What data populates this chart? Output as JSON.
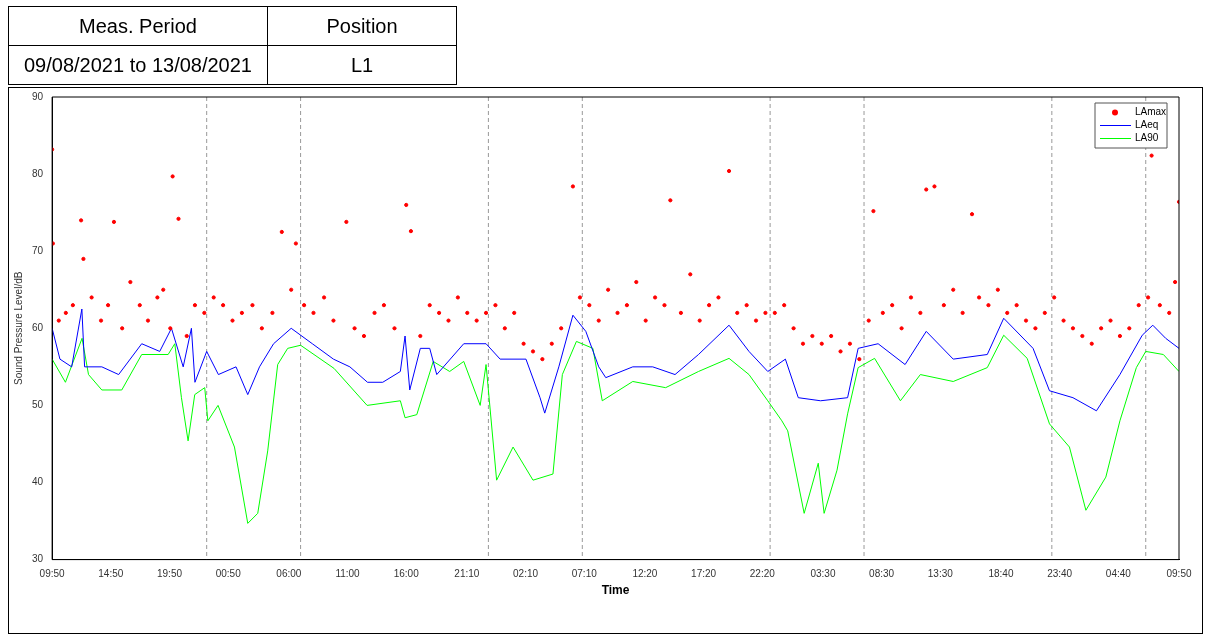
{
  "chart_data": {
    "type": "line",
    "xlabel": "Time",
    "ylabel": "Sound Pressure Level/dB",
    "annotations": [
      "Meas. Period",
      "Position",
      "09/08/2021 to 13/08/2021",
      "L1"
    ],
    "xlim": [
      "2021-08-09T09:50",
      "2021-08-13T09:50"
    ],
    "ylim": [
      30,
      90
    ],
    "yticks": [
      30,
      40,
      50,
      60,
      70,
      80,
      90
    ],
    "xticks": [
      {
        "value": "2021-08-09T09:50",
        "label": "09:50"
      },
      {
        "value": "2021-08-09T14:50",
        "label": "14:50"
      },
      {
        "value": "2021-08-09T19:50",
        "label": "19:50"
      },
      {
        "value": "2021-08-10T00:50",
        "label": "00:50"
      },
      {
        "value": "2021-08-10T06:00",
        "label": "06:00"
      },
      {
        "value": "2021-08-10T11:00",
        "label": "11:00"
      },
      {
        "value": "2021-08-10T16:00",
        "label": "16:00"
      },
      {
        "value": "2021-08-10T21:10",
        "label": "21:10"
      },
      {
        "value": "2021-08-11T02:10",
        "label": "02:10"
      },
      {
        "value": "2021-08-11T07:10",
        "label": "07:10"
      },
      {
        "value": "2021-08-11T12:20",
        "label": "12:20"
      },
      {
        "value": "2021-08-11T17:20",
        "label": "17:20"
      },
      {
        "value": "2021-08-11T22:20",
        "label": "22:20"
      },
      {
        "value": "2021-08-12T03:30",
        "label": "03:30"
      },
      {
        "value": "2021-08-12T08:30",
        "label": "08:30"
      },
      {
        "value": "2021-08-12T13:30",
        "label": "13:30"
      },
      {
        "value": "2021-08-12T18:40",
        "label": "18:40"
      },
      {
        "value": "2021-08-12T23:40",
        "label": "23:40"
      },
      {
        "value": "2021-08-13T04:40",
        "label": "04:40"
      },
      {
        "value": "2021-08-13T09:50",
        "label": "09:50"
      }
    ],
    "ref_lines": [
      {
        "axis": "x",
        "value": "2021-08-09T23:00",
        "color": "#999999",
        "line_style": "dashed"
      },
      {
        "axis": "x",
        "value": "2021-08-10T07:00",
        "color": "#999999",
        "line_style": "dashed"
      },
      {
        "axis": "x",
        "value": "2021-08-10T23:00",
        "color": "#999999",
        "line_style": "dashed"
      },
      {
        "axis": "x",
        "value": "2021-08-11T07:00",
        "color": "#999999",
        "line_style": "dashed"
      },
      {
        "axis": "x",
        "value": "2021-08-11T23:00",
        "color": "#999999",
        "line_style": "dashed"
      },
      {
        "axis": "x",
        "value": "2021-08-12T07:00",
        "color": "#999999",
        "line_style": "dashed"
      },
      {
        "axis": "x",
        "value": "2021-08-12T23:00",
        "color": "#999999",
        "line_style": "dashed"
      },
      {
        "axis": "x",
        "value": "2021-08-13T07:00",
        "color": "#999999",
        "line_style": "dashed"
      }
    ],
    "legend": "top right",
    "series": [
      {
        "name": "LAmax",
        "type": "scatter",
        "marker": "circle",
        "color": "#ff0000",
        "x": [
          "2021-08-09T09:50",
          "2021-08-09T09:54",
          "2021-08-09T10:24",
          "2021-08-09T11:00",
          "2021-08-09T11:36",
          "2021-08-09T12:18",
          "2021-08-09T12:30",
          "2021-08-09T13:12",
          "2021-08-09T14:00",
          "2021-08-09T14:36",
          "2021-08-09T15:06",
          "2021-08-09T15:48",
          "2021-08-09T16:30",
          "2021-08-09T17:18",
          "2021-08-09T18:00",
          "2021-08-09T18:48",
          "2021-08-09T19:18",
          "2021-08-09T19:54",
          "2021-08-09T20:06",
          "2021-08-09T20:36",
          "2021-08-09T21:18",
          "2021-08-09T22:00",
          "2021-08-09T22:48",
          "2021-08-09T23:36",
          "2021-08-10T00:24",
          "2021-08-10T01:12",
          "2021-08-10T02:00",
          "2021-08-10T02:54",
          "2021-08-10T03:42",
          "2021-08-10T04:36",
          "2021-08-10T05:24",
          "2021-08-10T06:12",
          "2021-08-10T06:36",
          "2021-08-10T07:18",
          "2021-08-10T08:06",
          "2021-08-10T09:00",
          "2021-08-10T09:48",
          "2021-08-10T10:54",
          "2021-08-10T11:36",
          "2021-08-10T12:24",
          "2021-08-10T13:18",
          "2021-08-10T14:06",
          "2021-08-10T15:00",
          "2021-08-10T16:00",
          "2021-08-10T16:24",
          "2021-08-10T17:12",
          "2021-08-10T18:00",
          "2021-08-10T18:48",
          "2021-08-10T19:36",
          "2021-08-10T20:24",
          "2021-08-10T21:12",
          "2021-08-10T22:00",
          "2021-08-10T22:48",
          "2021-08-10T23:36",
          "2021-08-11T00:24",
          "2021-08-11T01:12",
          "2021-08-11T02:00",
          "2021-08-11T02:48",
          "2021-08-11T03:36",
          "2021-08-11T04:24",
          "2021-08-11T05:12",
          "2021-08-11T06:12",
          "2021-08-11T06:48",
          "2021-08-11T07:36",
          "2021-08-11T08:24",
          "2021-08-11T09:12",
          "2021-08-11T10:00",
          "2021-08-11T10:48",
          "2021-08-11T11:36",
          "2021-08-11T12:24",
          "2021-08-11T13:12",
          "2021-08-11T14:00",
          "2021-08-11T14:30",
          "2021-08-11T15:24",
          "2021-08-11T16:12",
          "2021-08-11T17:00",
          "2021-08-11T17:48",
          "2021-08-11T18:36",
          "2021-08-11T19:30",
          "2021-08-11T20:12",
          "2021-08-11T21:00",
          "2021-08-11T21:48",
          "2021-08-11T22:36",
          "2021-08-11T23:24",
          "2021-08-12T00:12",
          "2021-08-12T01:00",
          "2021-08-12T01:48",
          "2021-08-12T02:36",
          "2021-08-12T03:24",
          "2021-08-12T04:12",
          "2021-08-12T05:00",
          "2021-08-12T05:48",
          "2021-08-12T06:36",
          "2021-08-12T07:24",
          "2021-08-12T07:48",
          "2021-08-12T08:36",
          "2021-08-12T09:24",
          "2021-08-12T10:12",
          "2021-08-12T11:00",
          "2021-08-12T11:48",
          "2021-08-12T12:18",
          "2021-08-12T13:00",
          "2021-08-12T13:48",
          "2021-08-12T14:36",
          "2021-08-12T15:24",
          "2021-08-12T16:12",
          "2021-08-12T16:48",
          "2021-08-12T17:36",
          "2021-08-12T18:24",
          "2021-08-12T19:12",
          "2021-08-12T20:00",
          "2021-08-12T20:48",
          "2021-08-12T21:36",
          "2021-08-12T22:24",
          "2021-08-12T23:12",
          "2021-08-13T00:00",
          "2021-08-13T00:48",
          "2021-08-13T01:36",
          "2021-08-13T02:24",
          "2021-08-13T03:12",
          "2021-08-13T04:00",
          "2021-08-13T04:48",
          "2021-08-13T05:36",
          "2021-08-13T06:24",
          "2021-08-13T07:12",
          "2021-08-13T07:30",
          "2021-08-13T08:12",
          "2021-08-13T09:00",
          "2021-08-13T09:30",
          "2021-08-13T09:50"
        ],
        "values": [
          83.2,
          71,
          61,
          62,
          63,
          74,
          69,
          64,
          61,
          63,
          73.8,
          60,
          66,
          63,
          61,
          64,
          65,
          60,
          79.7,
          74.2,
          59,
          63,
          62,
          64,
          63,
          61,
          62,
          63,
          60,
          62,
          72.5,
          65,
          71,
          63,
          62,
          64,
          61,
          73.8,
          60,
          59,
          62,
          63,
          60,
          76,
          72.6,
          59,
          63,
          62,
          61,
          64,
          62,
          61,
          62,
          63,
          60,
          62,
          58,
          57,
          56,
          58,
          60,
          78.4,
          64,
          63,
          61,
          65,
          62,
          63,
          66,
          61,
          64,
          63,
          76.6,
          62,
          67,
          61,
          63,
          64,
          80.4,
          62,
          63,
          61,
          62,
          62,
          63,
          60,
          58,
          59,
          58,
          59,
          57,
          58,
          56,
          61,
          75.2,
          62,
          63,
          60,
          64,
          62,
          78,
          78.4,
          63,
          65,
          62,
          74.8,
          64,
          63,
          65,
          62,
          63,
          61,
          60,
          62,
          64,
          61,
          60,
          59,
          58,
          60,
          61,
          59,
          60,
          63,
          64,
          82.4,
          63,
          62,
          66,
          76.4
        ]
      },
      {
        "name": "LAeq",
        "color": "#0000ff",
        "x": [
          "2021-08-09T09:50",
          "2021-08-09T10:30",
          "2021-08-09T11:30",
          "2021-08-09T12:22",
          "2021-08-09T12:36",
          "2021-08-09T14:04",
          "2021-08-09T15:30",
          "2021-08-09T17:28",
          "2021-08-09T19:00",
          "2021-08-09T20:00",
          "2021-08-09T21:00",
          "2021-08-09T21:42",
          "2021-08-09T22:00",
          "2021-08-09T23:00",
          "2021-08-10T00:00",
          "2021-08-10T01:30",
          "2021-08-10T02:30",
          "2021-08-10T03:30",
          "2021-08-10T04:42",
          "2021-08-10T06:12",
          "2021-08-10T08:00",
          "2021-08-10T09:48",
          "2021-08-10T11:12",
          "2021-08-10T12:42",
          "2021-08-10T14:00",
          "2021-08-10T15:30",
          "2021-08-10T15:54",
          "2021-08-10T16:18",
          "2021-08-10T17:12",
          "2021-08-10T18:00",
          "2021-08-10T18:36",
          "2021-08-10T20:54",
          "2021-08-10T22:48",
          "2021-08-11T00:00",
          "2021-08-11T02:12",
          "2021-08-11T03:24",
          "2021-08-11T03:48",
          "2021-08-11T05:00",
          "2021-08-11T06:12",
          "2021-08-11T07:18",
          "2021-08-11T08:24",
          "2021-08-11T09:00",
          "2021-08-11T11:18",
          "2021-08-11T13:00",
          "2021-08-11T14:54",
          "2021-08-11T16:54",
          "2021-08-11T19:30",
          "2021-08-11T21:12",
          "2021-08-11T22:48",
          "2021-08-12T00:18",
          "2021-08-12T01:24",
          "2021-08-12T03:18",
          "2021-08-12T05:36",
          "2021-08-12T06:30",
          "2021-08-12T08:12",
          "2021-08-12T10:30",
          "2021-08-12T12:18",
          "2021-08-12T14:36",
          "2021-08-12T17:30",
          "2021-08-12T18:54",
          "2021-08-12T21:24",
          "2021-08-12T22:48",
          "2021-08-13T00:48",
          "2021-08-13T02:48",
          "2021-08-13T04:48",
          "2021-08-13T06:42",
          "2021-08-13T07:36",
          "2021-08-13T08:42",
          "2021-08-13T09:50"
        ],
        "values": [
          60,
          56,
          55,
          62.5,
          55,
          55,
          54,
          58,
          57,
          60,
          55,
          60,
          53,
          57,
          54,
          55,
          51.4,
          55,
          58,
          60,
          58,
          56,
          55,
          53,
          53,
          54.4,
          59,
          52,
          57.4,
          57.4,
          54,
          58,
          58,
          56,
          56,
          51,
          49,
          55,
          61.7,
          59.6,
          55,
          53.6,
          55,
          55,
          54,
          56.6,
          60.4,
          57,
          54.4,
          56,
          51,
          50.6,
          51,
          57.4,
          58,
          55.3,
          59.6,
          56,
          56.6,
          61.3,
          57.4,
          51.9,
          51,
          49.3,
          54,
          59.1,
          60.4,
          58.7,
          57.4
        ]
      },
      {
        "name": "LA90",
        "color": "#00ff00",
        "x": [
          "2021-08-09T09:50",
          "2021-08-09T10:58",
          "2021-08-09T12:23",
          "2021-08-09T12:56",
          "2021-08-09T14:04",
          "2021-08-09T15:46",
          "2021-08-09T17:28",
          "2021-08-09T19:43",
          "2021-08-09T20:17",
          "2021-08-09T20:51",
          "2021-08-09T21:25",
          "2021-08-09T21:59",
          "2021-08-09T22:50",
          "2021-08-09T23:06",
          "2021-08-09T23:58",
          "2021-08-10T01:22",
          "2021-08-10T02:30",
          "2021-08-10T03:21",
          "2021-08-10T04:12",
          "2021-08-10T05:03",
          "2021-08-10T05:54",
          "2021-08-10T07:00",
          "2021-08-10T09:51",
          "2021-08-10T12:40",
          "2021-08-10T15:30",
          "2021-08-10T15:54",
          "2021-08-10T16:54",
          "2021-08-10T18:18",
          "2021-08-10T19:42",
          "2021-08-10T20:54",
          "2021-08-10T22:18",
          "2021-08-10T22:48",
          "2021-08-10T23:42",
          "2021-08-11T01:06",
          "2021-08-11T02:48",
          "2021-08-11T04:30",
          "2021-08-11T05:18",
          "2021-08-11T06:30",
          "2021-08-11T07:54",
          "2021-08-11T08:42",
          "2021-08-11T11:18",
          "2021-08-11T14:06",
          "2021-08-11T16:54",
          "2021-08-11T19:30",
          "2021-08-11T21:12",
          "2021-08-11T22:48",
          "2021-08-12T00:00",
          "2021-08-12T00:30",
          "2021-08-12T01:54",
          "2021-08-12T03:06",
          "2021-08-12T03:36",
          "2021-08-12T04:42",
          "2021-08-12T05:36",
          "2021-08-12T06:30",
          "2021-08-12T07:54",
          "2021-08-12T10:06",
          "2021-08-12T11:48",
          "2021-08-12T14:36",
          "2021-08-12T17:30",
          "2021-08-12T18:54",
          "2021-08-12T20:54",
          "2021-08-12T22:48",
          "2021-08-13T00:30",
          "2021-08-13T01:54",
          "2021-08-13T03:36",
          "2021-08-13T04:48",
          "2021-08-13T06:12",
          "2021-08-13T07:00",
          "2021-08-13T08:30",
          "2021-08-13T09:50"
        ],
        "values": [
          56,
          53,
          58.7,
          54,
          52,
          52,
          56.6,
          56.6,
          58,
          51,
          45.4,
          51.4,
          52.3,
          48,
          50,
          44.6,
          34.7,
          36,
          44.1,
          55.3,
          57.4,
          57.8,
          54.8,
          50,
          50.6,
          48.4,
          48.8,
          55.7,
          54.4,
          55.7,
          50,
          55.3,
          40.3,
          44.6,
          40.3,
          41.1,
          54,
          58.3,
          57.4,
          50.6,
          53.1,
          52.3,
          54.4,
          56.1,
          54,
          50.6,
          48,
          46.7,
          36,
          42.5,
          36,
          41.6,
          48.9,
          54.9,
          56.1,
          50.6,
          54,
          53.1,
          54.9,
          59.1,
          56.1,
          47.6,
          44.6,
          36.4,
          40.7,
          48,
          54.9,
          57,
          56.6,
          54.4
        ]
      }
    ]
  }
}
